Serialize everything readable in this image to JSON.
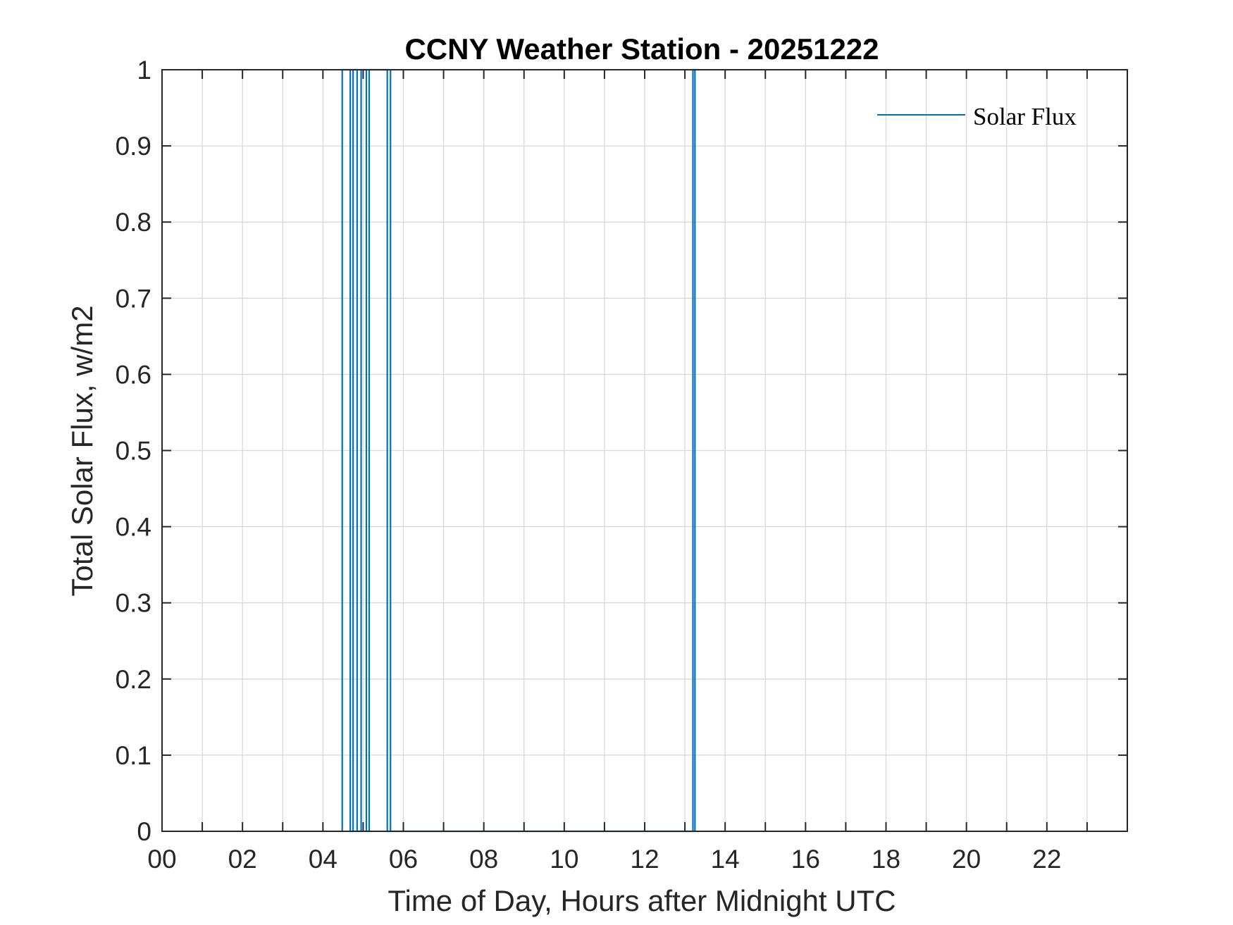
{
  "chart_data": {
    "type": "line",
    "title": "CCNY Weather Station - 20251222",
    "xlabel": "Time of Day, Hours after Midnight UTC",
    "ylabel": "Total Solar Flux, w/m2",
    "xlim": [
      0,
      24
    ],
    "ylim": [
      0,
      1
    ],
    "x_ticks": [
      0,
      2,
      4,
      6,
      8,
      10,
      12,
      14,
      16,
      18,
      20,
      22
    ],
    "x_tick_labels": [
      "00",
      "02",
      "04",
      "06",
      "08",
      "10",
      "12",
      "14",
      "16",
      "18",
      "20",
      "22"
    ],
    "x_minor_grid_step": 1,
    "y_ticks": [
      0,
      0.1,
      0.2,
      0.3,
      0.4,
      0.5,
      0.6,
      0.7,
      0.8,
      0.9,
      1
    ],
    "y_tick_labels": [
      "0",
      "0.1",
      "0.2",
      "0.3",
      "0.4",
      "0.5",
      "0.6",
      "0.7",
      "0.8",
      "0.9",
      "1"
    ],
    "grid": true,
    "legend": {
      "placement": "top-right",
      "entries": [
        "Solar Flux"
      ]
    },
    "series": [
      {
        "name": "Solar Flux",
        "color": "#0072BD",
        "points": [
          [
            4.48,
            0
          ],
          [
            4.48,
            1
          ],
          [
            4.68,
            1
          ],
          [
            4.68,
            0
          ],
          [
            4.75,
            0
          ],
          [
            4.75,
            1
          ],
          [
            4.85,
            1
          ],
          [
            4.85,
            0
          ],
          [
            4.95,
            0
          ],
          [
            4.95,
            1
          ],
          [
            5.08,
            1
          ],
          [
            5.08,
            0
          ],
          [
            5.15,
            0
          ],
          [
            5.15,
            1
          ],
          [
            5.6,
            1
          ],
          [
            5.6,
            0
          ],
          [
            5.68,
            0
          ],
          [
            5.68,
            1
          ],
          [
            5.68,
            0
          ],
          [
            13.2,
            0
          ],
          [
            13.2,
            1
          ],
          [
            13.25,
            1
          ],
          [
            13.25,
            0
          ]
        ]
      }
    ]
  }
}
